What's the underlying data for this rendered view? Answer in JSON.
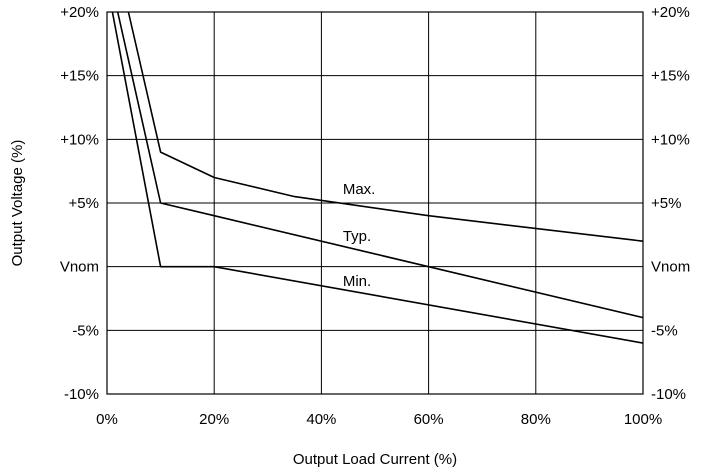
{
  "chart_data": {
    "type": "line",
    "xlabel": "Output Load Current (%)",
    "ylabel": "Output Voltage (%)",
    "xlim": [
      0,
      100
    ],
    "ylim": [
      -10,
      20
    ],
    "grid": true,
    "x_ticks": [
      {
        "value": 0,
        "label": "0%"
      },
      {
        "value": 20,
        "label": "20%"
      },
      {
        "value": 40,
        "label": "40%"
      },
      {
        "value": 60,
        "label": "60%"
      },
      {
        "value": 80,
        "label": "80%"
      },
      {
        "value": 100,
        "label": "100%"
      }
    ],
    "y_ticks_left": [
      {
        "value": 20,
        "label": "+20%"
      },
      {
        "value": 15,
        "label": "+15%"
      },
      {
        "value": 10,
        "label": "+10%"
      },
      {
        "value": 5,
        "label": "+5%"
      },
      {
        "value": 0,
        "label": "Vnom"
      },
      {
        "value": -5,
        "label": "-5%"
      },
      {
        "value": -10,
        "label": "-10%"
      }
    ],
    "y_ticks_right": [
      {
        "value": 20,
        "label": "+20%"
      },
      {
        "value": 15,
        "label": "+15%"
      },
      {
        "value": 10,
        "label": "+10%"
      },
      {
        "value": 5,
        "label": "+5%"
      },
      {
        "value": 0,
        "label": "Vnom"
      },
      {
        "value": -5,
        "label": "-5%"
      },
      {
        "value": -10,
        "label": "-10%"
      }
    ],
    "series": [
      {
        "name": "Max.",
        "label_at": [
          44,
          5.7
        ],
        "points": [
          [
            4,
            20
          ],
          [
            10,
            9
          ],
          [
            20,
            7
          ],
          [
            35,
            5.5
          ],
          [
            60,
            4
          ],
          [
            100,
            2
          ]
        ]
      },
      {
        "name": "Typ.",
        "label_at": [
          44,
          2.0
        ],
        "points": [
          [
            2,
            20
          ],
          [
            10,
            5
          ],
          [
            20,
            4
          ],
          [
            60,
            0
          ],
          [
            100,
            -4
          ]
        ]
      },
      {
        "name": "Min.",
        "label_at": [
          44,
          -1.5
        ],
        "points": [
          [
            1,
            20
          ],
          [
            10,
            0
          ],
          [
            20,
            0
          ],
          [
            100,
            -6
          ]
        ]
      }
    ]
  }
}
